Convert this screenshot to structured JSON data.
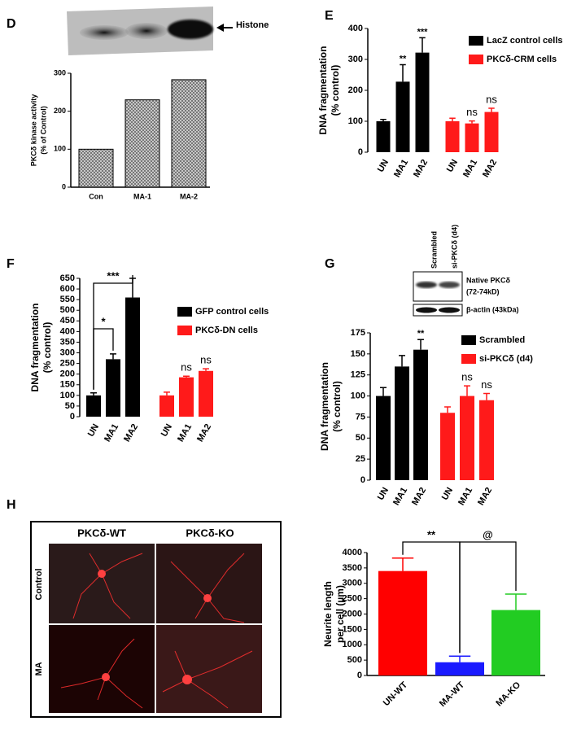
{
  "chart_data": [
    {
      "type": "bar",
      "panel": "D",
      "blot": {
        "label": "Histone"
      },
      "y_label": [
        "PKCδ kinase activity",
        "(% of Control)"
      ],
      "categories": [
        "Con",
        "MA-1",
        "MA-2"
      ],
      "series": [
        {
          "color": "#9a9a9a",
          "values": [
            100,
            230,
            283
          ]
        }
      ],
      "hatch": true,
      "x_axis_line": true,
      "ylim": [
        0,
        300
      ],
      "yticks": [
        0,
        100,
        200,
        300
      ]
    },
    {
      "type": "bar",
      "panel": "E",
      "y_label": [
        "DNA fragmentation",
        "(% control)"
      ],
      "categories": [
        "UN",
        "MA1",
        "MA2",
        "UN",
        "MA1",
        "MA2"
      ],
      "series": [
        {
          "name": "LacZ control cells",
          "color": "#000000",
          "values": [
            100,
            228,
            322,
            null,
            null,
            null
          ],
          "errors": [
            6,
            55,
            48,
            null,
            null,
            null
          ],
          "annotations": [
            null,
            "**",
            "***",
            null,
            null,
            null
          ]
        },
        {
          "name": "PKCδ-CRM cells",
          "color": "#ff1a1a",
          "values": [
            null,
            null,
            null,
            100,
            93,
            130
          ],
          "errors": [
            null,
            null,
            null,
            10,
            8,
            12
          ],
          "annotations": [
            null,
            null,
            null,
            null,
            "ns",
            "ns"
          ]
        }
      ],
      "x_axis_line": false,
      "ylim": [
        0,
        400
      ],
      "yticks": [
        0,
        100,
        200,
        300,
        400
      ]
    },
    {
      "type": "bar",
      "panel": "F",
      "y_label": [
        "DNA fragmentation",
        "(% control)"
      ],
      "categories": [
        "UN",
        "MA1",
        "MA2",
        "UN",
        "MA1",
        "MA2"
      ],
      "series": [
        {
          "name": "GFP control cells",
          "color": "#000000",
          "values": [
            100,
            270,
            560,
            null,
            null,
            null
          ],
          "errors": [
            12,
            25,
            90,
            null,
            null,
            null
          ]
        },
        {
          "name": "PKCδ-DN cells",
          "color": "#ff1a1a",
          "values": [
            null,
            null,
            null,
            100,
            185,
            215
          ],
          "errors": [
            null,
            null,
            null,
            15,
            5,
            10
          ],
          "annotations": [
            null,
            null,
            null,
            null,
            "ns",
            "ns"
          ]
        }
      ],
      "bracket_labels": [
        "*",
        "***"
      ],
      "x_axis_line": false,
      "ylim": [
        0,
        650
      ],
      "yticks": [
        0,
        50,
        100,
        150,
        200,
        250,
        300,
        350,
        400,
        450,
        500,
        550,
        600,
        650
      ]
    },
    {
      "type": "bar",
      "panel": "G",
      "blot": {
        "lanes": [
          "Scrambled",
          "si-PKCδ (d4)"
        ],
        "bands": [
          [
            "Native PKCδ",
            "(72-74kD)"
          ],
          [
            "β-actin (43kDa)"
          ]
        ]
      },
      "y_label": [
        "DNA fragmentation",
        "(% control)"
      ],
      "categories": [
        "UN",
        "MA1",
        "MA2",
        "UN",
        "MA1",
        "MA2"
      ],
      "series": [
        {
          "name": "Scrambled",
          "color": "#000000",
          "values": [
            100,
            135,
            155,
            null,
            null,
            null
          ],
          "errors": [
            10,
            13,
            12,
            null,
            null,
            null
          ],
          "annotations": [
            null,
            null,
            "**",
            null,
            null,
            null
          ]
        },
        {
          "name": "si-PKCδ (d4)",
          "color": "#ff1a1a",
          "values": [
            null,
            null,
            null,
            80,
            100,
            95
          ],
          "errors": [
            null,
            null,
            null,
            7,
            12,
            8
          ],
          "annotations": [
            null,
            null,
            null,
            null,
            "ns",
            "ns"
          ]
        }
      ],
      "x_axis_line": false,
      "ylim": [
        0,
        175
      ],
      "yticks": [
        0,
        25,
        50,
        75,
        100,
        125,
        150,
        175
      ]
    },
    {
      "type": "bar",
      "panel": "H",
      "micrograph": {
        "columns": [
          "PKCδ-WT",
          "PKCδ-KO"
        ],
        "rows": [
          "Control",
          "MA"
        ]
      },
      "y_label": [
        "Neurite length",
        "per cell (µm)"
      ],
      "categories": [
        "UN-WT",
        "MA-WT",
        "MA-KO"
      ],
      "series": [
        {
          "colors": [
            "#ff0000",
            "#1a1aff",
            "#22cc22"
          ],
          "values": [
            3400,
            430,
            2130
          ],
          "errors": [
            420,
            200,
            520
          ]
        }
      ],
      "bracket_labels": [
        "**",
        "@"
      ],
      "x_axis_line": true,
      "ylim": [
        0,
        4000
      ],
      "yticks": [
        0,
        500,
        1000,
        1500,
        2000,
        2500,
        3000,
        3500,
        4000
      ]
    }
  ]
}
